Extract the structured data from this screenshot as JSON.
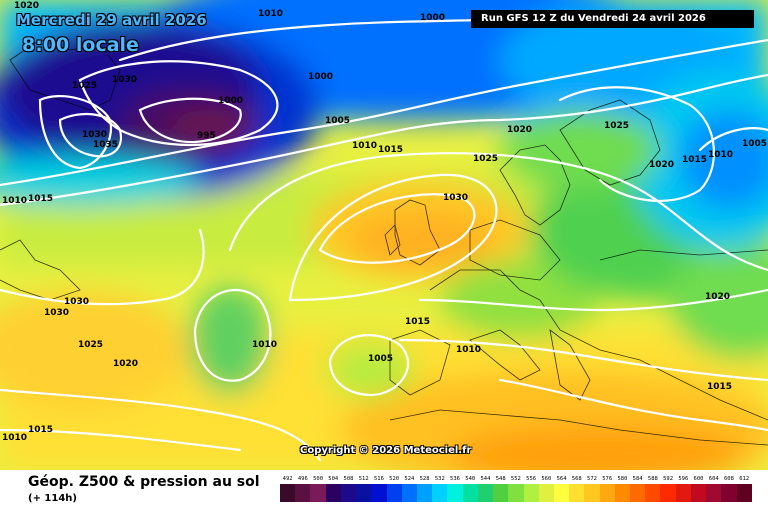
{
  "header": {
    "date_title": "Mercredi 29 avril 2026",
    "time_title": "8:00 locale",
    "run_info": "Run GFS 12 Z du Vendredi 24 avril 2026"
  },
  "footer": {
    "legend_title": "Géop. Z500 & pression au sol",
    "legend_subtitle": "(+ 114h)",
    "copyright": "Copyright © 2026 Meteociel.fr"
  },
  "scale": {
    "values": [
      "492",
      "496",
      "500",
      "504",
      "508",
      "512",
      "516",
      "520",
      "524",
      "528",
      "532",
      "536",
      "540",
      "544",
      "548",
      "552",
      "556",
      "560",
      "564",
      "568",
      "572",
      "576",
      "580",
      "584",
      "588",
      "592",
      "596",
      "600",
      "604",
      "608",
      "612"
    ],
    "colors": [
      "#3a0a2a",
      "#5a1040",
      "#7a1a5a",
      "#2a0060",
      "#1c0a8a",
      "#0a10a0",
      "#0010d0",
      "#0040f0",
      "#0070ff",
      "#00a0ff",
      "#00d0ff",
      "#00f0e0",
      "#00e0a0",
      "#20d070",
      "#50d040",
      "#80e040",
      "#b0f040",
      "#e0f040",
      "#ffff40",
      "#ffe030",
      "#ffc820",
      "#ffa810",
      "#ff8a00",
      "#ff6a00",
      "#ff4a00",
      "#ff2a00",
      "#e01a10",
      "#c00a20",
      "#a00a30",
      "#800030",
      "#600020"
    ]
  },
  "pressure_labels": [
    {
      "text": "1020",
      "id": "p1"
    },
    {
      "text": "1010",
      "id": "p2"
    },
    {
      "text": "1000",
      "id": "p3"
    },
    {
      "text": "1025",
      "id": "p4"
    },
    {
      "text": "1030",
      "id": "p5"
    },
    {
      "text": "1000",
      "id": "p6"
    },
    {
      "text": "1000",
      "id": "p7"
    },
    {
      "text": "1030",
      "id": "p8"
    },
    {
      "text": "1035",
      "id": "p9"
    },
    {
      "text": "995",
      "id": "p10"
    },
    {
      "text": "1005",
      "id": "p11"
    },
    {
      "text": "1010",
      "id": "p12"
    },
    {
      "text": "1015",
      "id": "p13"
    },
    {
      "text": "1020",
      "id": "p14"
    },
    {
      "text": "1025",
      "id": "p15"
    },
    {
      "text": "1025",
      "id": "p16"
    },
    {
      "text": "1020",
      "id": "p17"
    },
    {
      "text": "1015",
      "id": "p18"
    },
    {
      "text": "1010",
      "id": "p19"
    },
    {
      "text": "1005",
      "id": "p20"
    },
    {
      "text": "1010",
      "id": "p21"
    },
    {
      "text": "1015",
      "id": "p22"
    },
    {
      "text": "1030",
      "id": "p23"
    },
    {
      "text": "1030",
      "id": "p24"
    },
    {
      "text": "1030",
      "id": "p25"
    },
    {
      "text": "1025",
      "id": "p26"
    },
    {
      "text": "1020",
      "id": "p27"
    },
    {
      "text": "1010",
      "id": "p28"
    },
    {
      "text": "1015",
      "id": "p29"
    },
    {
      "text": "1005",
      "id": "p30"
    },
    {
      "text": "1010",
      "id": "p31"
    },
    {
      "text": "1010",
      "id": "p32"
    },
    {
      "text": "1015",
      "id": "p33"
    },
    {
      "text": "1020",
      "id": "p34"
    },
    {
      "text": "1015",
      "id": "p35"
    }
  ]
}
